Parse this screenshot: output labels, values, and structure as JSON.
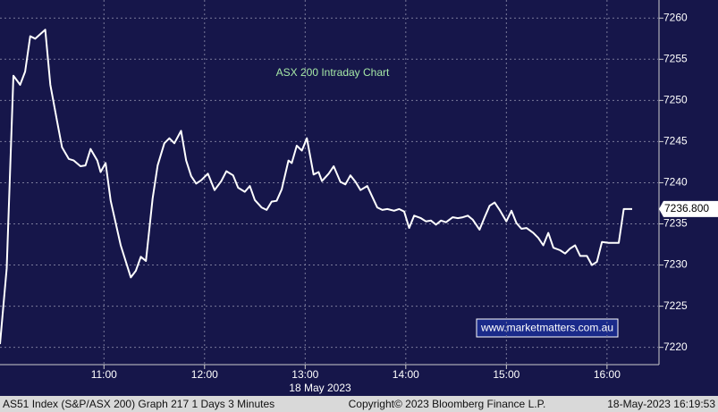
{
  "chart_data": {
    "type": "line",
    "title": "ASX 200 Intraday Chart",
    "xlabel": "18 May 2023",
    "watermark": "www.marketmatters.com.au",
    "footer": {
      "left": "AS51 Index (S&P/ASX 200) Graph 217 1 Days 3 Minutes",
      "center": "Copyright© 2023 Bloomberg Finance L.P.",
      "right": "18-May-2023 16:19:53"
    },
    "color": "#ffffff",
    "grid": true,
    "x": [
      598,
      602,
      606,
      610,
      613,
      616,
      619,
      625,
      628,
      632,
      635,
      639,
      642,
      646,
      649,
      652,
      656,
      658,
      661,
      664,
      670,
      676,
      679,
      682,
      685,
      689,
      692,
      696,
      699,
      702,
      706,
      709,
      712,
      715,
      718,
      722,
      726,
      730,
      733,
      737,
      740,
      744,
      747,
      750,
      754,
      757,
      760,
      763,
      766,
      770,
      772,
      775,
      778,
      781,
      785,
      788,
      790,
      794,
      797,
      801,
      804,
      807,
      810,
      813,
      817,
      820,
      823,
      826,
      829,
      833,
      836,
      839,
      842,
      845,
      849,
      852,
      855,
      858,
      861,
      864,
      868,
      871,
      874,
      877,
      880,
      884,
      887,
      890,
      893,
      896,
      900,
      903,
      906,
      909,
      912,
      916,
      919,
      922,
      925,
      928,
      932,
      935,
      938,
      941,
      944,
      948,
      951,
      954,
      957,
      961,
      964,
      967,
      970,
      975
    ],
    "values": [
      7220.4,
      7229.6,
      7253.0,
      7251.9,
      7253.5,
      7257.8,
      7257.5,
      7258.6,
      7251.9,
      7247.5,
      7244.3,
      7242.9,
      7242.7,
      7242.0,
      7242.1,
      7244.1,
      7242.7,
      7241.3,
      7242.4,
      7237.8,
      7232.4,
      7228.5,
      7229.3,
      7231.0,
      7230.5,
      7238.1,
      7242.1,
      7244.8,
      7245.4,
      7244.8,
      7246.3,
      7242.7,
      7240.8,
      7239.9,
      7240.3,
      7241.1,
      7239.1,
      7240.2,
      7241.4,
      7240.9,
      7239.4,
      7238.9,
      7239.6,
      7237.9,
      7237.0,
      7236.7,
      7237.7,
      7237.8,
      7239.2,
      7242.7,
      7242.4,
      7244.5,
      7243.9,
      7245.4,
      7241.0,
      7241.3,
      7240.2,
      7241.1,
      7242.0,
      7240.1,
      7239.8,
      7240.9,
      7240.1,
      7239.1,
      7239.6,
      7238.3,
      7237.0,
      7236.7,
      7236.8,
      7236.6,
      7236.8,
      7236.5,
      7234.5,
      7236.0,
      7235.7,
      7235.3,
      7235.4,
      7234.9,
      7235.4,
      7235.2,
      7235.8,
      7235.7,
      7235.8,
      7236.0,
      7235.5,
      7234.3,
      7235.8,
      7237.2,
      7237.6,
      7236.7,
      7235.3,
      7236.6,
      7235.1,
      7234.4,
      7234.5,
      7233.9,
      7233.3,
      7232.4,
      7233.9,
      7232.1,
      7231.8,
      7231.4,
      7232.0,
      7232.4,
      7231.1,
      7231.1,
      7230.0,
      7230.4,
      7232.8,
      7232.7,
      7232.7,
      7232.7,
      7236.8,
      7236.8
    ],
    "last_price": {
      "value": 7236.8,
      "label": "7236.800"
    },
    "xlim": [
      598,
      991
    ],
    "xticks": [
      {
        "value": 660,
        "label": "11:00"
      },
      {
        "value": 720,
        "label": "12:00"
      },
      {
        "value": 780,
        "label": "13:00"
      },
      {
        "value": 840,
        "label": "14:00"
      },
      {
        "value": 900,
        "label": "15:00"
      },
      {
        "value": 960,
        "label": "16:00"
      }
    ],
    "ylim": [
      7217.9,
      7262.2
    ],
    "yticks": [
      7220,
      7225,
      7230,
      7235,
      7240,
      7245,
      7250,
      7255,
      7260
    ]
  }
}
